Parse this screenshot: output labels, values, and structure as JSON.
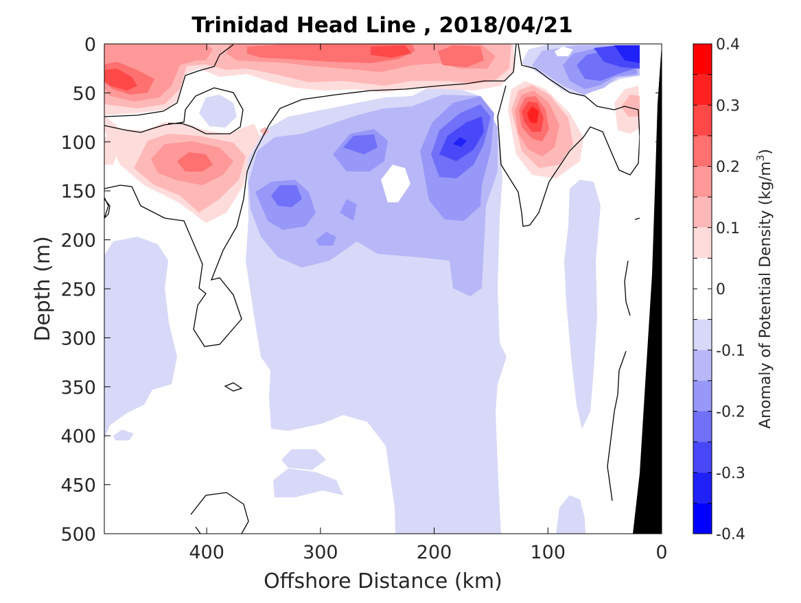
{
  "chart_data": {
    "type": "heatmap",
    "title": "Trinidad Head Line , 2018/04/21",
    "xlabel": "Offshore Distance (km)",
    "ylabel": "Depth (m)",
    "xlim": [
      490,
      0
    ],
    "ylim": [
      0,
      500
    ],
    "x_reversed": true,
    "y_reversed": true,
    "xticks": [
      400,
      300,
      200,
      100,
      0
    ],
    "yticks": [
      0,
      50,
      100,
      150,
      200,
      250,
      300,
      350,
      400,
      450,
      500
    ],
    "colorbar": {
      "label": "Anomaly of Potential Density (kg/m3)",
      "label_main": "Anomaly of Potential Density (kg/m",
      "label_sup": "3",
      "label_end": ")",
      "limits": [
        -0.4,
        0.4
      ],
      "ticks": [
        0.4,
        0.3,
        0.2,
        0.1,
        0,
        -0.1,
        -0.2,
        -0.3,
        -0.4
      ],
      "tick_labels": [
        "0.4",
        "0.3",
        "0.2",
        "0.1",
        "0",
        "-0.1",
        "-0.2",
        "-0.3",
        "-0.4"
      ],
      "levels": [
        0.4,
        0.35,
        0.3,
        0.25,
        0.2,
        0.15,
        0.1,
        0.05,
        0,
        -0.05,
        -0.1,
        -0.15,
        -0.2,
        -0.25,
        -0.3,
        -0.35,
        -0.4
      ],
      "colors": [
        "#ff0000",
        "#ff2020",
        "#ff4848",
        "#ff7070",
        "#ff9898",
        "#ffb8b8",
        "#ffdcdc",
        "#ffffff",
        "#ffffff",
        "#d8d8f8",
        "#b8b8f8",
        "#9898f8",
        "#7070f8",
        "#4848f8",
        "#2020f8",
        "#0000ff"
      ]
    },
    "contour_zero_color": "#000000",
    "bathymetry_color": "#000000",
    "anomaly_features": [
      {
        "x": 465,
        "y": 38,
        "value": 0.3
      },
      {
        "x": 415,
        "y": 115,
        "value": 0.22
      },
      {
        "x": 300,
        "y": 12,
        "value": 0.2
      },
      {
        "x": 210,
        "y": 8,
        "value": 0.3
      },
      {
        "x": 112,
        "y": 75,
        "value": 0.32
      },
      {
        "x": 30,
        "y": 110,
        "value": 0.1
      },
      {
        "x": 180,
        "y": 100,
        "value": -0.35
      },
      {
        "x": 250,
        "y": 100,
        "value": -0.22
      },
      {
        "x": 330,
        "y": 170,
        "value": -0.2
      },
      {
        "x": 60,
        "y": 20,
        "value": -0.3
      },
      {
        "x": 230,
        "y": 140,
        "value": 0.0
      }
    ]
  }
}
